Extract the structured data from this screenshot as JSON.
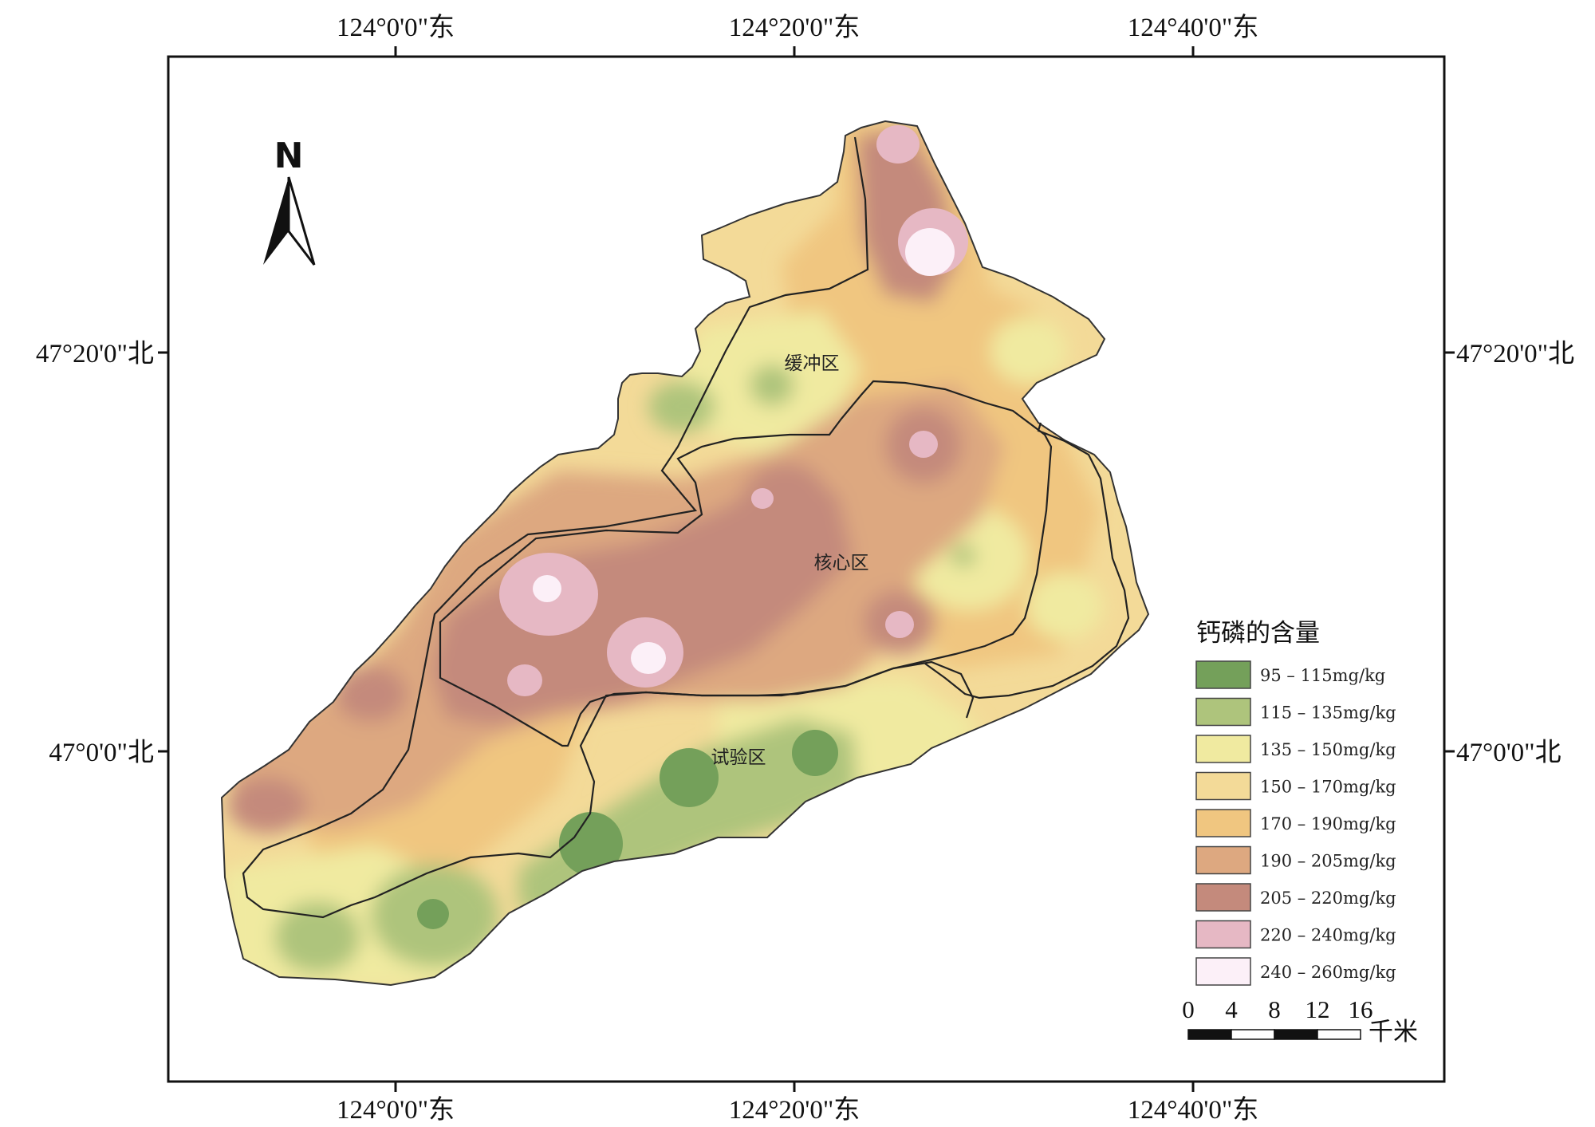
{
  "coords": {
    "top": [
      "124°0'0\"东",
      "124°20'0\"东",
      "124°40'0\"东"
    ],
    "bottom": [
      "124°0'0\"东",
      "124°20'0\"东",
      "124°40'0\"东"
    ],
    "left": [
      "47°20'0\"北",
      "47°0'0\"北"
    ],
    "right": [
      "47°20'0\"北",
      "47°0'0\"北"
    ]
  },
  "north_arrow": {
    "label": "N"
  },
  "zones": {
    "buffer": "缓冲区",
    "core": "核心区",
    "experimental": "试验区"
  },
  "legend": {
    "title": "钙磷的含量",
    "classes": [
      {
        "label": "95 - 115mg/kg",
        "color": "#74a05a"
      },
      {
        "label": "115 - 135mg/kg",
        "color": "#aec47c"
      },
      {
        "label": "135 - 150mg/kg",
        "color": "#f0eaa0"
      },
      {
        "label": "150 - 170mg/kg",
        "color": "#f3da98"
      },
      {
        "label": "170 - 190mg/kg",
        "color": "#f0c680"
      },
      {
        "label": "190 - 205mg/kg",
        "color": "#dda880"
      },
      {
        "label": "205 - 220mg/kg",
        "color": "#c48a7c"
      },
      {
        "label": "220 - 240mg/kg",
        "color": "#e6b8c4"
      },
      {
        "label": "240 - 260mg/kg",
        "color": "#fcf0f8"
      }
    ]
  },
  "scale_bar": {
    "ticks": [
      "0",
      "4",
      "8",
      "12",
      "16"
    ],
    "unit": "千米"
  }
}
